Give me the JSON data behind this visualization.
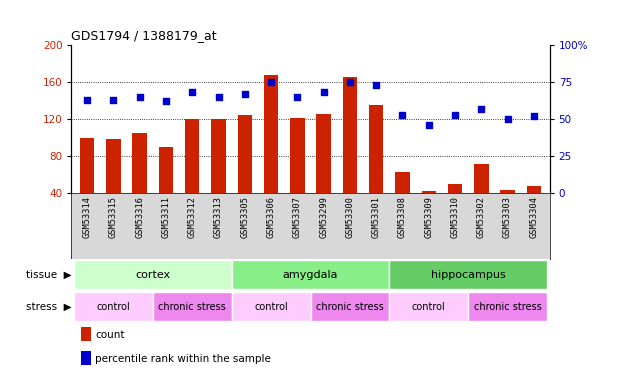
{
  "title": "GDS1794 / 1388179_at",
  "samples": [
    "GSM53314",
    "GSM53315",
    "GSM53316",
    "GSM53311",
    "GSM53312",
    "GSM53313",
    "GSM53305",
    "GSM53306",
    "GSM53307",
    "GSM53299",
    "GSM53300",
    "GSM53301",
    "GSM53308",
    "GSM53309",
    "GSM53310",
    "GSM53302",
    "GSM53303",
    "GSM53304"
  ],
  "counts": [
    100,
    98,
    105,
    90,
    120,
    120,
    124,
    168,
    121,
    126,
    165,
    135,
    63,
    42,
    50,
    72,
    43,
    48
  ],
  "percentiles": [
    63,
    63,
    65,
    62,
    68,
    65,
    67,
    75,
    65,
    68,
    75,
    73,
    53,
    46,
    53,
    57,
    50,
    52
  ],
  "ylim_left": [
    40,
    200
  ],
  "ylim_right": [
    0,
    100
  ],
  "yticks_left": [
    40,
    80,
    120,
    160,
    200
  ],
  "yticks_right": [
    0,
    25,
    50,
    75,
    100
  ],
  "bar_color": "#cc2200",
  "dot_color": "#0000cc",
  "tissue_groups": [
    {
      "label": "cortex",
      "start": 0,
      "end": 6,
      "color": "#ccffcc"
    },
    {
      "label": "amygdala",
      "start": 6,
      "end": 12,
      "color": "#88ee88"
    },
    {
      "label": "hippocampus",
      "start": 12,
      "end": 18,
      "color": "#66cc66"
    }
  ],
  "stress_groups": [
    {
      "label": "control",
      "start": 0,
      "end": 3,
      "color": "#ffccff"
    },
    {
      "label": "chronic stress",
      "start": 3,
      "end": 6,
      "color": "#ee88ee"
    },
    {
      "label": "control",
      "start": 6,
      "end": 9,
      "color": "#ffccff"
    },
    {
      "label": "chronic stress",
      "start": 9,
      "end": 12,
      "color": "#ee88ee"
    },
    {
      "label": "control",
      "start": 12,
      "end": 15,
      "color": "#ffccff"
    },
    {
      "label": "chronic stress",
      "start": 15,
      "end": 18,
      "color": "#ee88ee"
    }
  ],
  "legend_items": [
    {
      "label": "count",
      "color": "#cc2200"
    },
    {
      "label": "percentile rank within the sample",
      "color": "#0000cc"
    }
  ],
  "tissue_label": "tissue",
  "stress_label": "stress",
  "grid_lines": [
    80,
    120,
    160
  ],
  "tick_label_color_left": "#cc2200",
  "tick_label_color_right": "#0000cc",
  "sample_bg_color": "#d8d8d8",
  "xlabel_fontsize": 6.5,
  "ylabel_fontsize": 8,
  "title_fontsize": 9
}
